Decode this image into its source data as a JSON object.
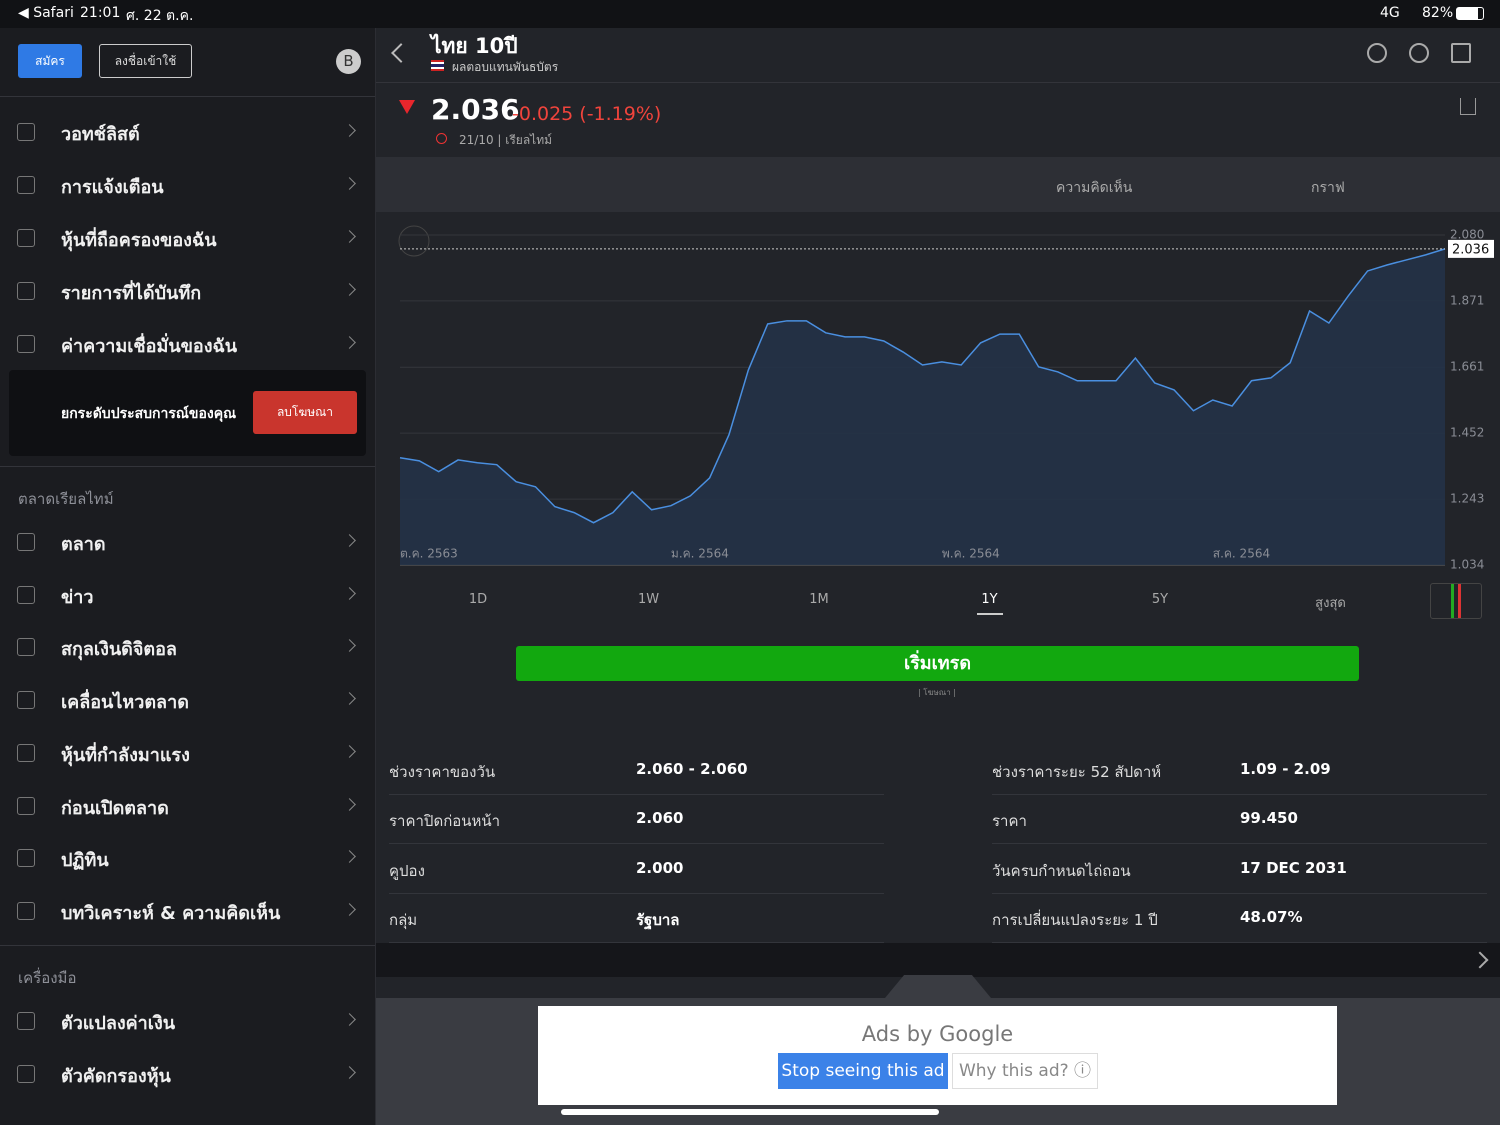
{
  "status": {
    "carrier": "◀ Safari",
    "time": "21:01",
    "date": "ศ. 22 ต.ค.",
    "network": "4G",
    "battery": "82%"
  },
  "sidebar": {
    "signup": "สมัคร",
    "login": "ลงชื่อเข้าใช้",
    "avatar": "B",
    "menu": [
      "วอทช์ลิสต์",
      "การแจ้งเตือน",
      "หุ้นที่ถือครองของฉัน",
      "รายการที่ได้บันทึก",
      "ค่าความเชื่อมั่นของฉัน"
    ],
    "upgrade": {
      "text": "ยกระดับประสบการณ์ของคุณ",
      "button": "ลบโฆษณา"
    },
    "sections": [
      {
        "title": "ตลาดเรียลไทม์",
        "items": [
          "ตลาด",
          "ข่าว",
          "สกุลเงินดิจิตอล",
          "เคลื่อนไหวตลาด",
          "หุ้นที่กำลังมาแรง",
          "ก่อนเปิดตลาด",
          "ปฏิทิน",
          "บทวิเคราะห์ & ความคิดเห็น"
        ]
      },
      {
        "title": "เครื่องมือ",
        "items": [
          "ตัวแปลงค่าเงิน",
          "ตัวคัดกรองหุ้น"
        ]
      }
    ]
  },
  "header": {
    "title": "ไทย 10ปี",
    "subtitle": "ผลตอบแทนพันธบัตร"
  },
  "quote": {
    "price": "2.036",
    "change": "-0.025 (-1.19%)",
    "time": "21/10 | เรียลไทม์"
  },
  "tabs": [
    "ความคิดเห็น",
    "กราฟ"
  ],
  "chart_data": {
    "type": "line",
    "color": "#4a8fe0",
    "categories": [
      "ต.ค. 2563",
      null,
      null,
      null,
      null,
      null,
      null,
      null,
      null,
      null,
      null,
      null,
      null,
      null,
      "ม.ค. 2564",
      null,
      null,
      null,
      null,
      null,
      null,
      null,
      null,
      null,
      null,
      null,
      null,
      null,
      "พ.ค. 2564",
      null,
      null,
      null,
      null,
      null,
      null,
      null,
      null,
      null,
      null,
      null,
      null,
      null,
      "ส.ค. 2564",
      null,
      null,
      null,
      null,
      null,
      null,
      null,
      null,
      null,
      null,
      null,
      null
    ],
    "values": [
      1.374,
      1.364,
      1.33,
      1.367,
      1.358,
      1.352,
      1.298,
      1.282,
      1.219,
      1.2,
      1.168,
      1.2,
      1.266,
      1.209,
      1.222,
      1.253,
      1.31,
      1.447,
      1.652,
      1.798,
      1.808,
      1.808,
      1.77,
      1.757,
      1.757,
      1.744,
      1.709,
      1.668,
      1.678,
      1.668,
      1.738,
      1.766,
      1.766,
      1.662,
      1.646,
      1.618,
      1.618,
      1.618,
      1.69,
      1.611,
      1.589,
      1.523,
      1.557,
      1.538,
      1.618,
      1.627,
      1.675,
      1.839,
      1.801,
      1.887,
      1.966,
      1.985,
      2.001,
      2.017,
      2.036
    ],
    "ylim": [
      1.034,
      2.08
    ],
    "yticks": [
      {
        "value": 2.08,
        "label": "2.080"
      },
      1.871,
      1.661,
      1.452,
      1.243,
      1.034
    ],
    "grid": true
  },
  "ranges": [
    "1D",
    "1W",
    "1M",
    "1Y",
    "5Y",
    "สูงสุด"
  ],
  "selected_range": 3,
  "trade": {
    "button": "เริ่มเทรด",
    "note": "| โฆษณา |"
  },
  "stats": [
    [
      "ช่วงราคาของวัน",
      "2.060 - 2.060",
      "ช่วงราคาระยะ 52 สัปดาห์",
      "1.09 - 2.09"
    ],
    [
      "ราคาปิดก่อนหน้า",
      "2.060",
      "ราคา",
      "99.450"
    ],
    [
      "คูปอง",
      "2.000",
      "วันครบกำหนดไถ่ถอน",
      "17 DEC 2031"
    ],
    [
      "กลุ่ม",
      "รัฐบาล",
      "การเปลี่ยนแปลงระยะ 1 ปี",
      "48.07%"
    ]
  ],
  "ad": {
    "brand": "Ads by Google",
    "stop": "Stop seeing this ad",
    "why": "Why this ad? ⓘ"
  }
}
